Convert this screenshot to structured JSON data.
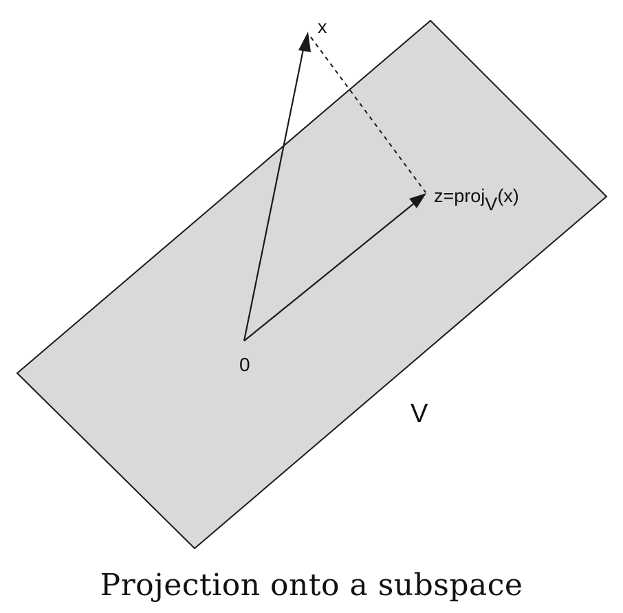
{
  "diagram": {
    "vector_x_label": "x",
    "projection_label_main": "z=proj",
    "projection_label_sub": "V",
    "projection_label_arg": "(x)",
    "origin_label": "0",
    "subspace_label": "V",
    "caption": "Projection onto a subspace"
  },
  "colors": {
    "plane_fill": "#d9d9d9",
    "stroke": "#1a1a1a"
  }
}
